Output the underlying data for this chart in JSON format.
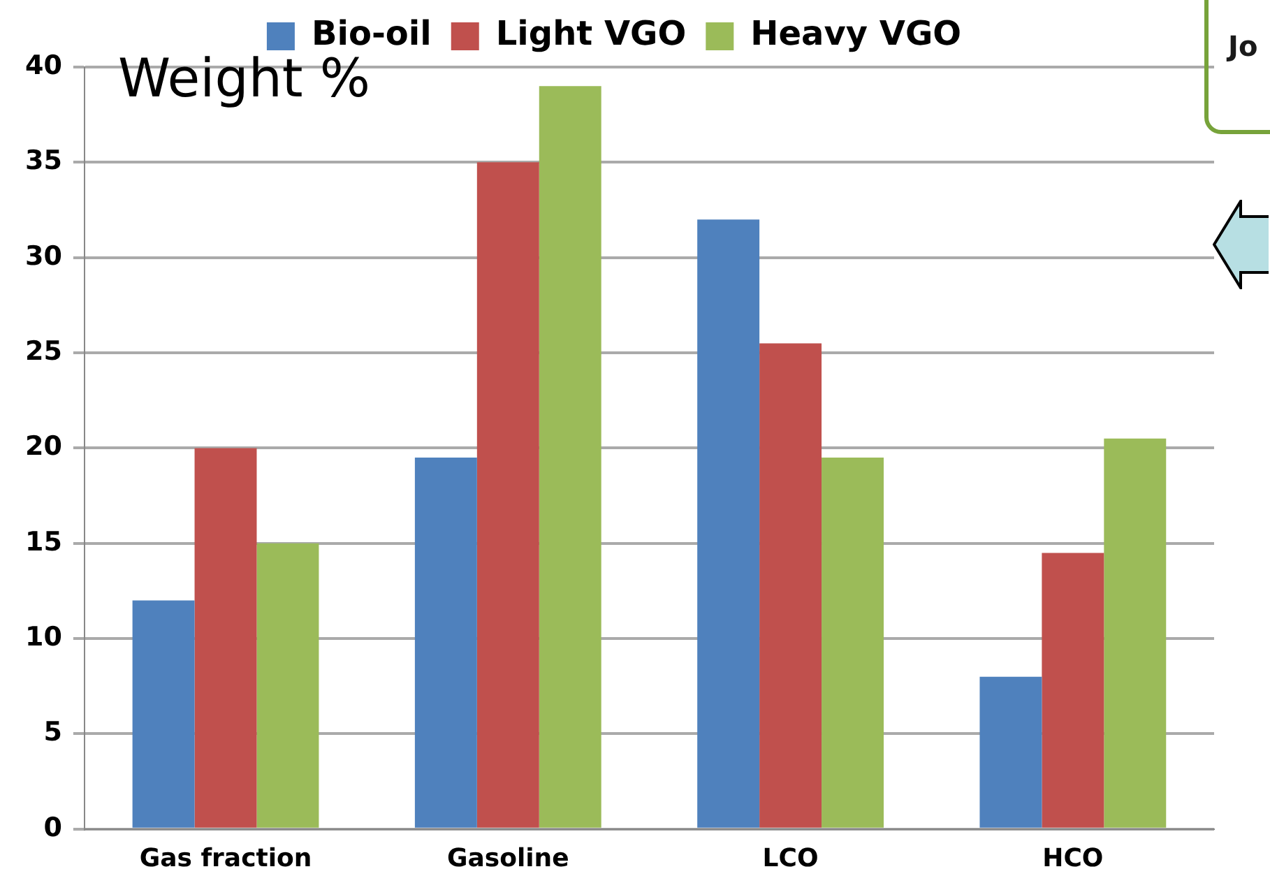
{
  "chart_data": {
    "type": "bar",
    "ylabel": "Weight %",
    "categories": [
      "Gas fraction",
      "Gasoline",
      "LCO",
      "HCO"
    ],
    "series": [
      {
        "name": "Bio-oil",
        "color": "#4f81bd",
        "values": [
          12,
          19.5,
          32,
          8
        ]
      },
      {
        "name": "Light VGO",
        "color": "#c0504d",
        "values": [
          20,
          35,
          25.5,
          14.5
        ]
      },
      {
        "name": "Heavy VGO",
        "color": "#9bbb59",
        "values": [
          15,
          39,
          19.5,
          20.5
        ]
      }
    ],
    "ylim": [
      0,
      40
    ],
    "yticks": [
      0,
      5,
      10,
      15,
      20,
      25,
      30,
      35,
      40
    ],
    "grid": "y",
    "legend": "top",
    "annotations": [
      "Jo"
    ]
  }
}
